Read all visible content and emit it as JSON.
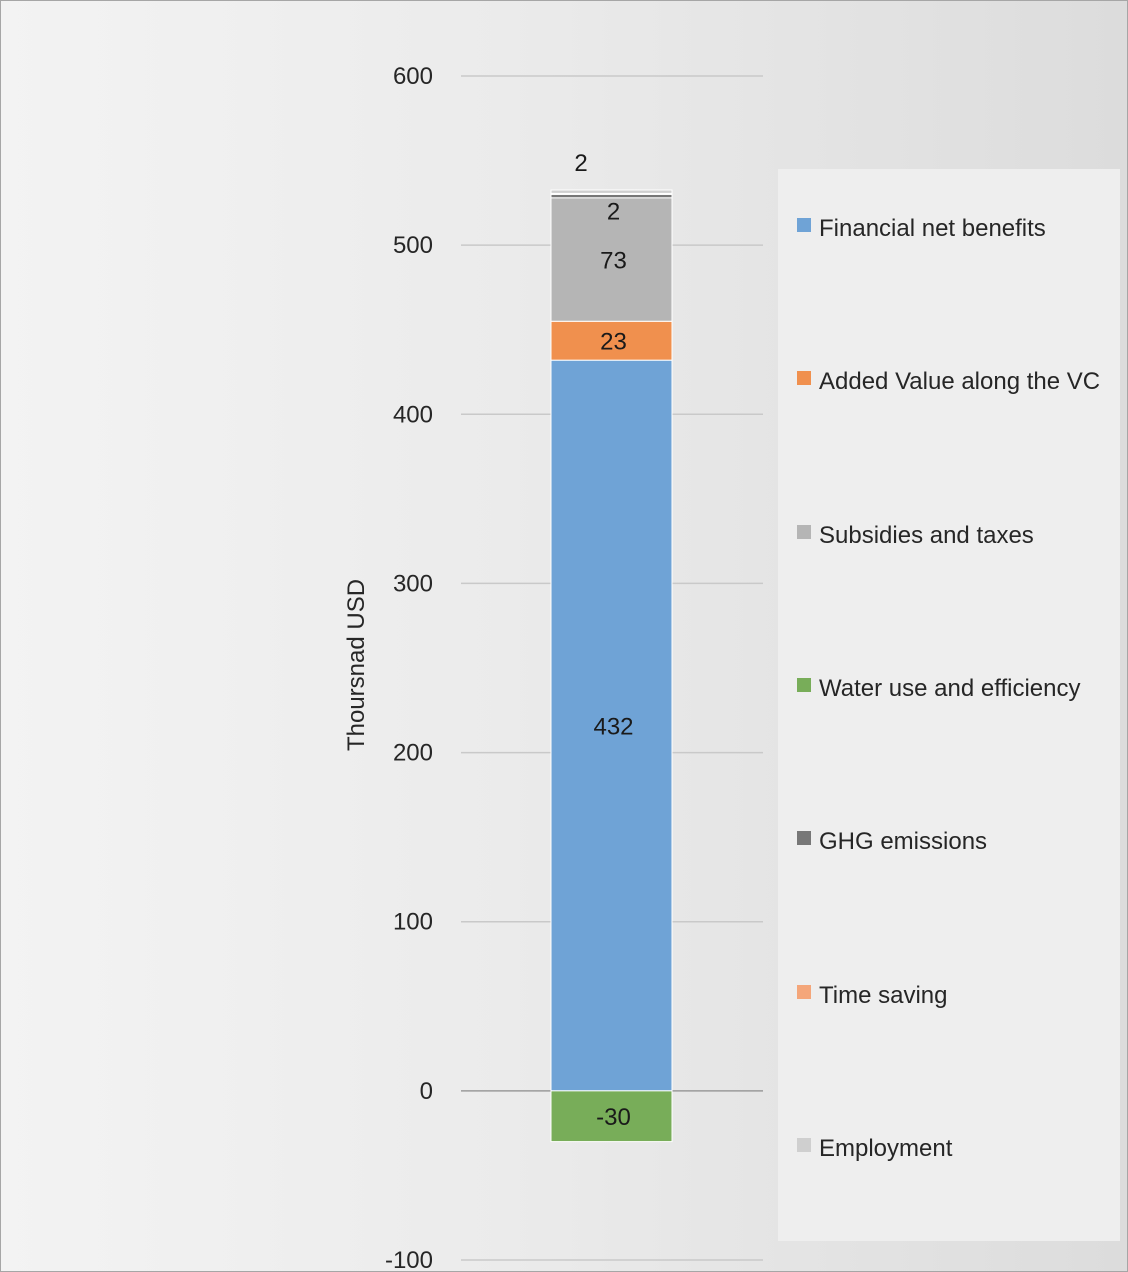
{
  "chart_data": {
    "type": "bar",
    "stacked": true,
    "categories": [
      ""
    ],
    "ylabel": "Thoursnad USD",
    "ylim": [
      -100,
      600
    ],
    "yticks": [
      600,
      500,
      400,
      300,
      200,
      100,
      0,
      -100
    ],
    "grid": true,
    "legend_position": "right",
    "series": [
      {
        "name": "Financial net benefits",
        "values": [
          432
        ],
        "label": "432",
        "color": "#6fa3d6"
      },
      {
        "name": "Added Value along the VC",
        "values": [
          23
        ],
        "label": "23",
        "color": "#f0904e"
      },
      {
        "name": "Subsidies and taxes",
        "values": [
          73
        ],
        "label": "73",
        "color": "#b5b5b5"
      },
      {
        "name": "Water use and efficiency",
        "values": [
          -30
        ],
        "label": "-30",
        "color": "#78ad59"
      },
      {
        "name": "GHG emissions",
        "values": [
          2
        ],
        "label": "2",
        "color": "#777777"
      },
      {
        "name": "Time saving",
        "values": [
          0.6
        ],
        "label": "",
        "color": "#f4a67a"
      },
      {
        "name": "Employment",
        "values": [
          2
        ],
        "label": "2",
        "color": "#cfcfcf"
      }
    ]
  }
}
